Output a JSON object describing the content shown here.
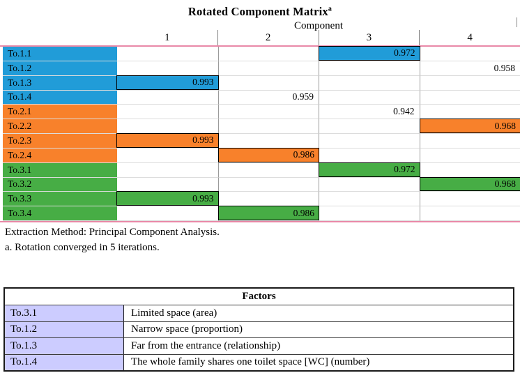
{
  "chart_data": {
    "type": "table",
    "title": "Rotated Component Matrix",
    "title_superscript": "a",
    "column_group_label": "Component",
    "columns": [
      "1",
      "2",
      "3",
      "4"
    ],
    "rows": [
      {
        "label": "To.1.1",
        "group": "blue",
        "component": 3,
        "loading": "0.972",
        "bar": true
      },
      {
        "label": "To.1.2",
        "group": "blue",
        "component": 4,
        "loading": "0.958",
        "bar": false
      },
      {
        "label": "To.1.3",
        "group": "blue",
        "component": 1,
        "loading": "0.993",
        "bar": true
      },
      {
        "label": "To.1.4",
        "group": "blue",
        "component": 2,
        "loading": "0.959",
        "bar": false
      },
      {
        "label": "To.2.1",
        "group": "orange",
        "component": 3,
        "loading": "0.942",
        "bar": false
      },
      {
        "label": "To.2.2",
        "group": "orange",
        "component": 4,
        "loading": "0.968",
        "bar": true
      },
      {
        "label": "To.2.3",
        "group": "orange",
        "component": 1,
        "loading": "0.993",
        "bar": true
      },
      {
        "label": "To.2.4",
        "group": "orange",
        "component": 2,
        "loading": "0.986",
        "bar": true
      },
      {
        "label": "To.3.1",
        "group": "green",
        "component": 3,
        "loading": "0.972",
        "bar": true
      },
      {
        "label": "To.3.2",
        "group": "green",
        "component": 4,
        "loading": "0.968",
        "bar": true
      },
      {
        "label": "To.3.3",
        "group": "green",
        "component": 1,
        "loading": "0.993",
        "bar": true
      },
      {
        "label": "To.3.4",
        "group": "green",
        "component": 2,
        "loading": "0.986",
        "bar": true
      }
    ],
    "footnotes": [
      "Extraction Method: Principal Component Analysis.",
      "a. Rotation converged in 5 iterations."
    ]
  },
  "colors": {
    "blue": "#219CD8",
    "orange": "#F8812B",
    "green": "#47AD45",
    "lavender": "#CCCCFF",
    "pinkLine": "#E989A8"
  },
  "factors_table": {
    "header": "Factors",
    "rows": [
      {
        "code": "To.3.1",
        "description": "Limited space (area)"
      },
      {
        "code": "To.1.2",
        "description": "Narrow space (proportion)"
      },
      {
        "code": "To.1.3",
        "description": "Far from the entrance (relationship)"
      },
      {
        "code": "To.1.4",
        "description": "The whole family shares one toilet space [WC] (number)"
      }
    ]
  }
}
